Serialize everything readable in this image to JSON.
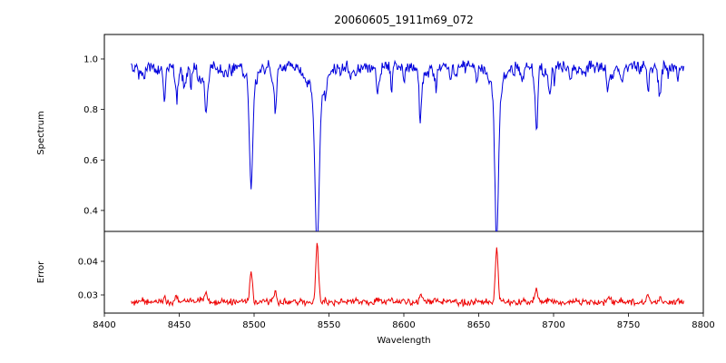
{
  "figure": {
    "background_color": "#ffffff"
  },
  "chart_data": {
    "type": "line",
    "title": "20060605_1911m69_072",
    "xlabel": "Wavelength",
    "grid": false,
    "legend": null,
    "x_range": [
      8400,
      8800
    ],
    "x_ticks": [
      8400,
      8450,
      8500,
      8550,
      8600,
      8650,
      8700,
      8750,
      8800
    ],
    "x_tick_labels": [
      "8400",
      "8450",
      "8500",
      "8550",
      "8600",
      "8650",
      "8700",
      "8750",
      "8800"
    ],
    "data_x_range": [
      8418,
      8787
    ],
    "sample_step": 0.5,
    "panels": [
      {
        "name": "spectrum",
        "ylabel": "Spectrum",
        "color": "#0000dd",
        "y_range": [
          0.317,
          1.097
        ],
        "y_ticks": [
          0.4,
          0.6,
          0.8,
          1.0
        ],
        "y_tick_labels": [
          "0.4",
          "0.6",
          "0.8",
          "1.0"
        ],
        "continuum_level": 0.97,
        "noise_amplitude": 0.03,
        "seed": 20060605,
        "minor_line_count": 60,
        "absorption_lines": [
          {
            "center": 8440.0,
            "depth": 0.11,
            "sigma": 0.7,
            "error_peak": 0.001
          },
          {
            "center": 8468.4,
            "depth": 0.13,
            "sigma": 0.8,
            "error_peak": 0.002
          },
          {
            "center": 8498.0,
            "depth": 0.44,
            "sigma": 1.1,
            "wing_depth": 0.05,
            "wing_sigma": 3.5,
            "error_peak": 0.0092
          },
          {
            "center": 8514.1,
            "depth": 0.15,
            "sigma": 0.8,
            "error_peak": 0.002
          },
          {
            "center": 8542.1,
            "depth": 0.6,
            "sigma": 1.4,
            "wing_depth": 0.1,
            "wing_sigma": 6.0,
            "error_peak": 0.0177
          },
          {
            "center": 8582.3,
            "depth": 0.09,
            "sigma": 0.7,
            "error_peak": 0.001
          },
          {
            "center": 8611.0,
            "depth": 0.11,
            "sigma": 0.7,
            "error_peak": 0.001
          },
          {
            "center": 8621.5,
            "depth": 0.09,
            "sigma": 0.7,
            "error_peak": 0.001
          },
          {
            "center": 8662.1,
            "depth": 0.53,
            "sigma": 1.2,
            "wing_depth": 0.07,
            "wing_sigma": 4.5,
            "error_peak": 0.0147
          },
          {
            "center": 8688.6,
            "depth": 0.24,
            "sigma": 0.9,
            "error_peak": 0.004
          },
          {
            "center": 8736.0,
            "depth": 0.1,
            "sigma": 0.7,
            "error_peak": 0.001
          },
          {
            "center": 8763.1,
            "depth": 0.09,
            "sigma": 0.7,
            "error_peak": 0.002
          }
        ]
      },
      {
        "name": "error",
        "ylabel": "Error",
        "color": "#ee0000",
        "y_range": [
          0.0246,
          0.0489
        ],
        "y_ticks": [
          0.03,
          0.04
        ],
        "y_tick_labels": [
          "0.03",
          "0.04"
        ],
        "baseline_level": 0.0278,
        "noise_amplitude": 0.0012,
        "peak_sigma": 0.9
      }
    ]
  }
}
